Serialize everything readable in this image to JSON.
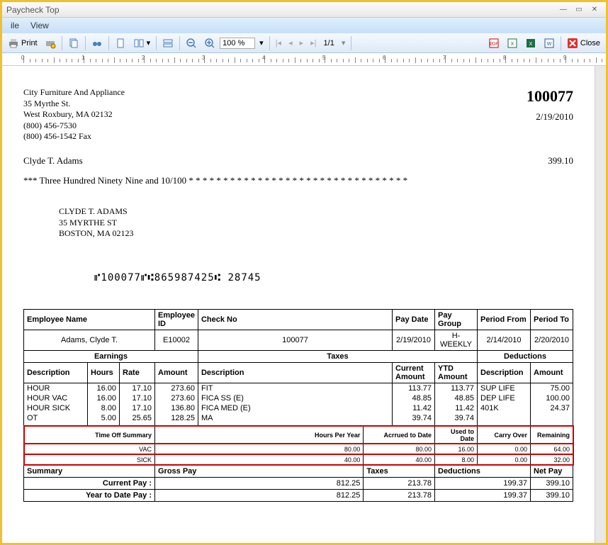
{
  "window": {
    "title": "Paycheck Top"
  },
  "menu": {
    "items": [
      "ile",
      "View"
    ]
  },
  "toolbar": {
    "print_label": "Print",
    "zoom_value": "100 %",
    "page_label": "1/1",
    "close_label": "Close"
  },
  "check": {
    "company_name": "City Furniture And Appliance",
    "company_street": "35 Myrthe St.",
    "company_citystate": "West Roxbury,  MA  02132",
    "company_phone": "(800) 456-7530",
    "company_fax": "(800) 456-1542 Fax",
    "number": "100077",
    "date": "2/19/2010",
    "payee_name": "Clyde T. Adams",
    "amount": "399.10",
    "amount_words": "*** Three Hundred Ninety Nine and 10/100 * * * * * * * * * * * * * * * * * * * * * * * * * * * * * * * *",
    "mail_name": "CLYDE T. ADAMS",
    "mail_street": "35 MYRTHE ST",
    "mail_citystate": "BOSTON, MA 02123",
    "micr": "⑈100077⑈⑆865987425⑆ 28745"
  },
  "stub": {
    "headers": {
      "emp_name": "Employee Name",
      "emp_id": "Employee ID",
      "check_no": "Check No",
      "pay_date": "Pay Date",
      "pay_group": "Pay Group",
      "period_from": "Period From",
      "period_to": "Period To"
    },
    "info": {
      "emp_name": "Adams, Clyde T.",
      "emp_id": "E10002",
      "check_no": "100077",
      "pay_date": "2/19/2010",
      "pay_group": "H-WEEKLY",
      "period_from": "2/14/2010",
      "period_to": "2/20/2010"
    },
    "sections": {
      "earnings": "Earnings",
      "taxes": "Taxes",
      "deductions": "Deductions"
    },
    "cols": {
      "desc": "Description",
      "hours": "Hours",
      "rate": "Rate",
      "amount": "Amount",
      "curr_amount": "Current Amount",
      "ytd_amount": "YTD Amount"
    },
    "earnings": [
      {
        "desc": "HOUR",
        "hours": "16.00",
        "rate": "17.10",
        "amount": "273.60"
      },
      {
        "desc": "HOUR VAC",
        "hours": "16.00",
        "rate": "17.10",
        "amount": "273.60"
      },
      {
        "desc": "HOUR SICK",
        "hours": "8.00",
        "rate": "17.10",
        "amount": "136.80"
      },
      {
        "desc": "OT",
        "hours": "5.00",
        "rate": "25.65",
        "amount": "128.25"
      }
    ],
    "taxes": [
      {
        "desc": "FIT",
        "curr": "113.77",
        "ytd": "113.77"
      },
      {
        "desc": "FICA SS (E)",
        "curr": "48.85",
        "ytd": "48.85"
      },
      {
        "desc": "FICA MED (E)",
        "curr": "11.42",
        "ytd": "11.42"
      },
      {
        "desc": "MA",
        "curr": "39.74",
        "ytd": "39.74"
      }
    ],
    "deductions": [
      {
        "desc": "SUP LIFE",
        "amount": "75.00"
      },
      {
        "desc": "DEP LIFE",
        "amount": "100.00"
      },
      {
        "desc": "401K",
        "amount": "24.37"
      }
    ],
    "timeoff_hdr": {
      "label": "Time Off  Summary",
      "hpy": "Hours Per Year",
      "acc": "Acrrued to Date",
      "used": "Used to Date",
      "carry": "Carry Over",
      "remain": "Remaining"
    },
    "timeoff": [
      {
        "type": "VAC",
        "hpy": "80.00",
        "acc": "80.00",
        "used": "16.00",
        "carry": "0.00",
        "remain": "64.00"
      },
      {
        "type": "SICK",
        "hpy": "40.00",
        "acc": "40.00",
        "used": "8.00",
        "carry": "0.00",
        "remain": "32.00"
      }
    ],
    "summary_hdr": {
      "label": "Summary",
      "gross": "Gross Pay",
      "taxes": "Taxes",
      "ded": "Deductions",
      "net": "Net Pay"
    },
    "summary": [
      {
        "label": "Current Pay :",
        "gross": "812.25",
        "taxes": "213.78",
        "ded": "199.37",
        "net": "399.10"
      },
      {
        "label": "Year to Date Pay :",
        "gross": "812.25",
        "taxes": "213.78",
        "ded": "199.37",
        "net": "399.10"
      }
    ]
  },
  "colors": {
    "titlebar_text": "#555555",
    "menu_bg1": "#dfeefc",
    "menu_bg2": "#c6e0f7",
    "border_outer": "#f0c030",
    "red_box": "#cc0000"
  }
}
